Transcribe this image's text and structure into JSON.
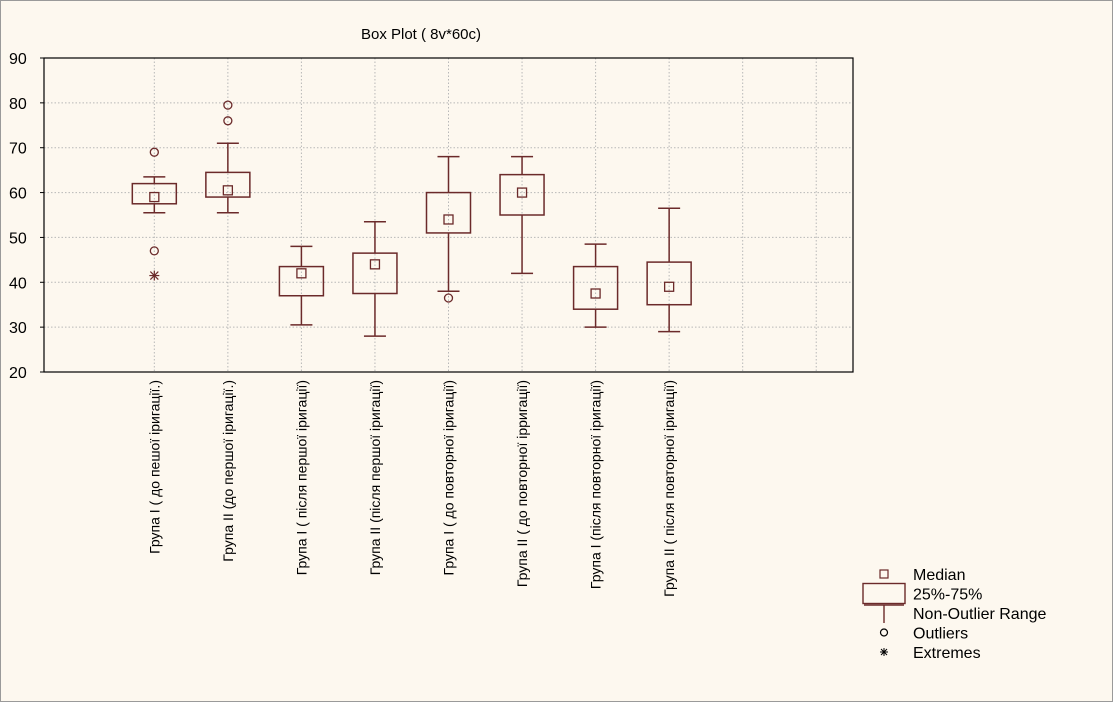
{
  "chart_data": {
    "type": "box",
    "title": "Box Plot ( 8v*60c)",
    "ylim": [
      20,
      90
    ],
    "yticks": [
      20,
      30,
      40,
      50,
      60,
      70,
      80,
      90
    ],
    "grid": true,
    "categories": [
      "Група І ( до пешої іригації.)",
      "Група ІІ (до першої іригації.)",
      "Група І ( після першої іригації)",
      "Група ІІ (після першої іригації)",
      "Група І ( до повторної іригації)",
      "Група ІІ ( до повторної ірригації)",
      "Група І (після повторної іригації)",
      "Група ІІ ( після повторної іригації)"
    ],
    "boxes": [
      {
        "median": 59,
        "q1": 57.5,
        "q3": 62,
        "whisker_low": 55.5,
        "whisker_high": 63.5,
        "outliers": [
          69,
          47
        ],
        "extremes": [
          41.5
        ]
      },
      {
        "median": 60.5,
        "q1": 59,
        "q3": 64.5,
        "whisker_low": 55.5,
        "whisker_high": 71,
        "outliers": [
          79.5,
          76
        ],
        "extremes": []
      },
      {
        "median": 42,
        "q1": 37,
        "q3": 43.5,
        "whisker_low": 30.5,
        "whisker_high": 48,
        "outliers": [],
        "extremes": []
      },
      {
        "median": 44,
        "q1": 37.5,
        "q3": 46.5,
        "whisker_low": 28,
        "whisker_high": 53.5,
        "outliers": [],
        "extremes": []
      },
      {
        "median": 54,
        "q1": 51,
        "q3": 60,
        "whisker_low": 38,
        "whisker_high": 68,
        "outliers": [
          36.5
        ],
        "extremes": []
      },
      {
        "median": 60,
        "q1": 55,
        "q3": 64,
        "whisker_low": 42,
        "whisker_high": 68,
        "outliers": [],
        "extremes": []
      },
      {
        "median": 37.5,
        "q1": 34,
        "q3": 43.5,
        "whisker_low": 30,
        "whisker_high": 48.5,
        "outliers": [],
        "extremes": []
      },
      {
        "median": 39,
        "q1": 35,
        "q3": 44.5,
        "whisker_low": 29,
        "whisker_high": 56.5,
        "outliers": [],
        "extremes": []
      }
    ],
    "legend": {
      "position": "bottom-right",
      "items": [
        {
          "symbol": "median",
          "label": "Median"
        },
        {
          "symbol": "box",
          "label": "25%-75%"
        },
        {
          "symbol": "whisker",
          "label": "Non-Outlier Range"
        },
        {
          "symbol": "outlier",
          "label": "Outliers"
        },
        {
          "symbol": "extreme",
          "label": "Extremes"
        }
      ]
    },
    "colors": {
      "mark": "#6b2a2a",
      "grid": "#b8b8b8",
      "axis": "#000000",
      "background": "#fdf8ef"
    }
  }
}
